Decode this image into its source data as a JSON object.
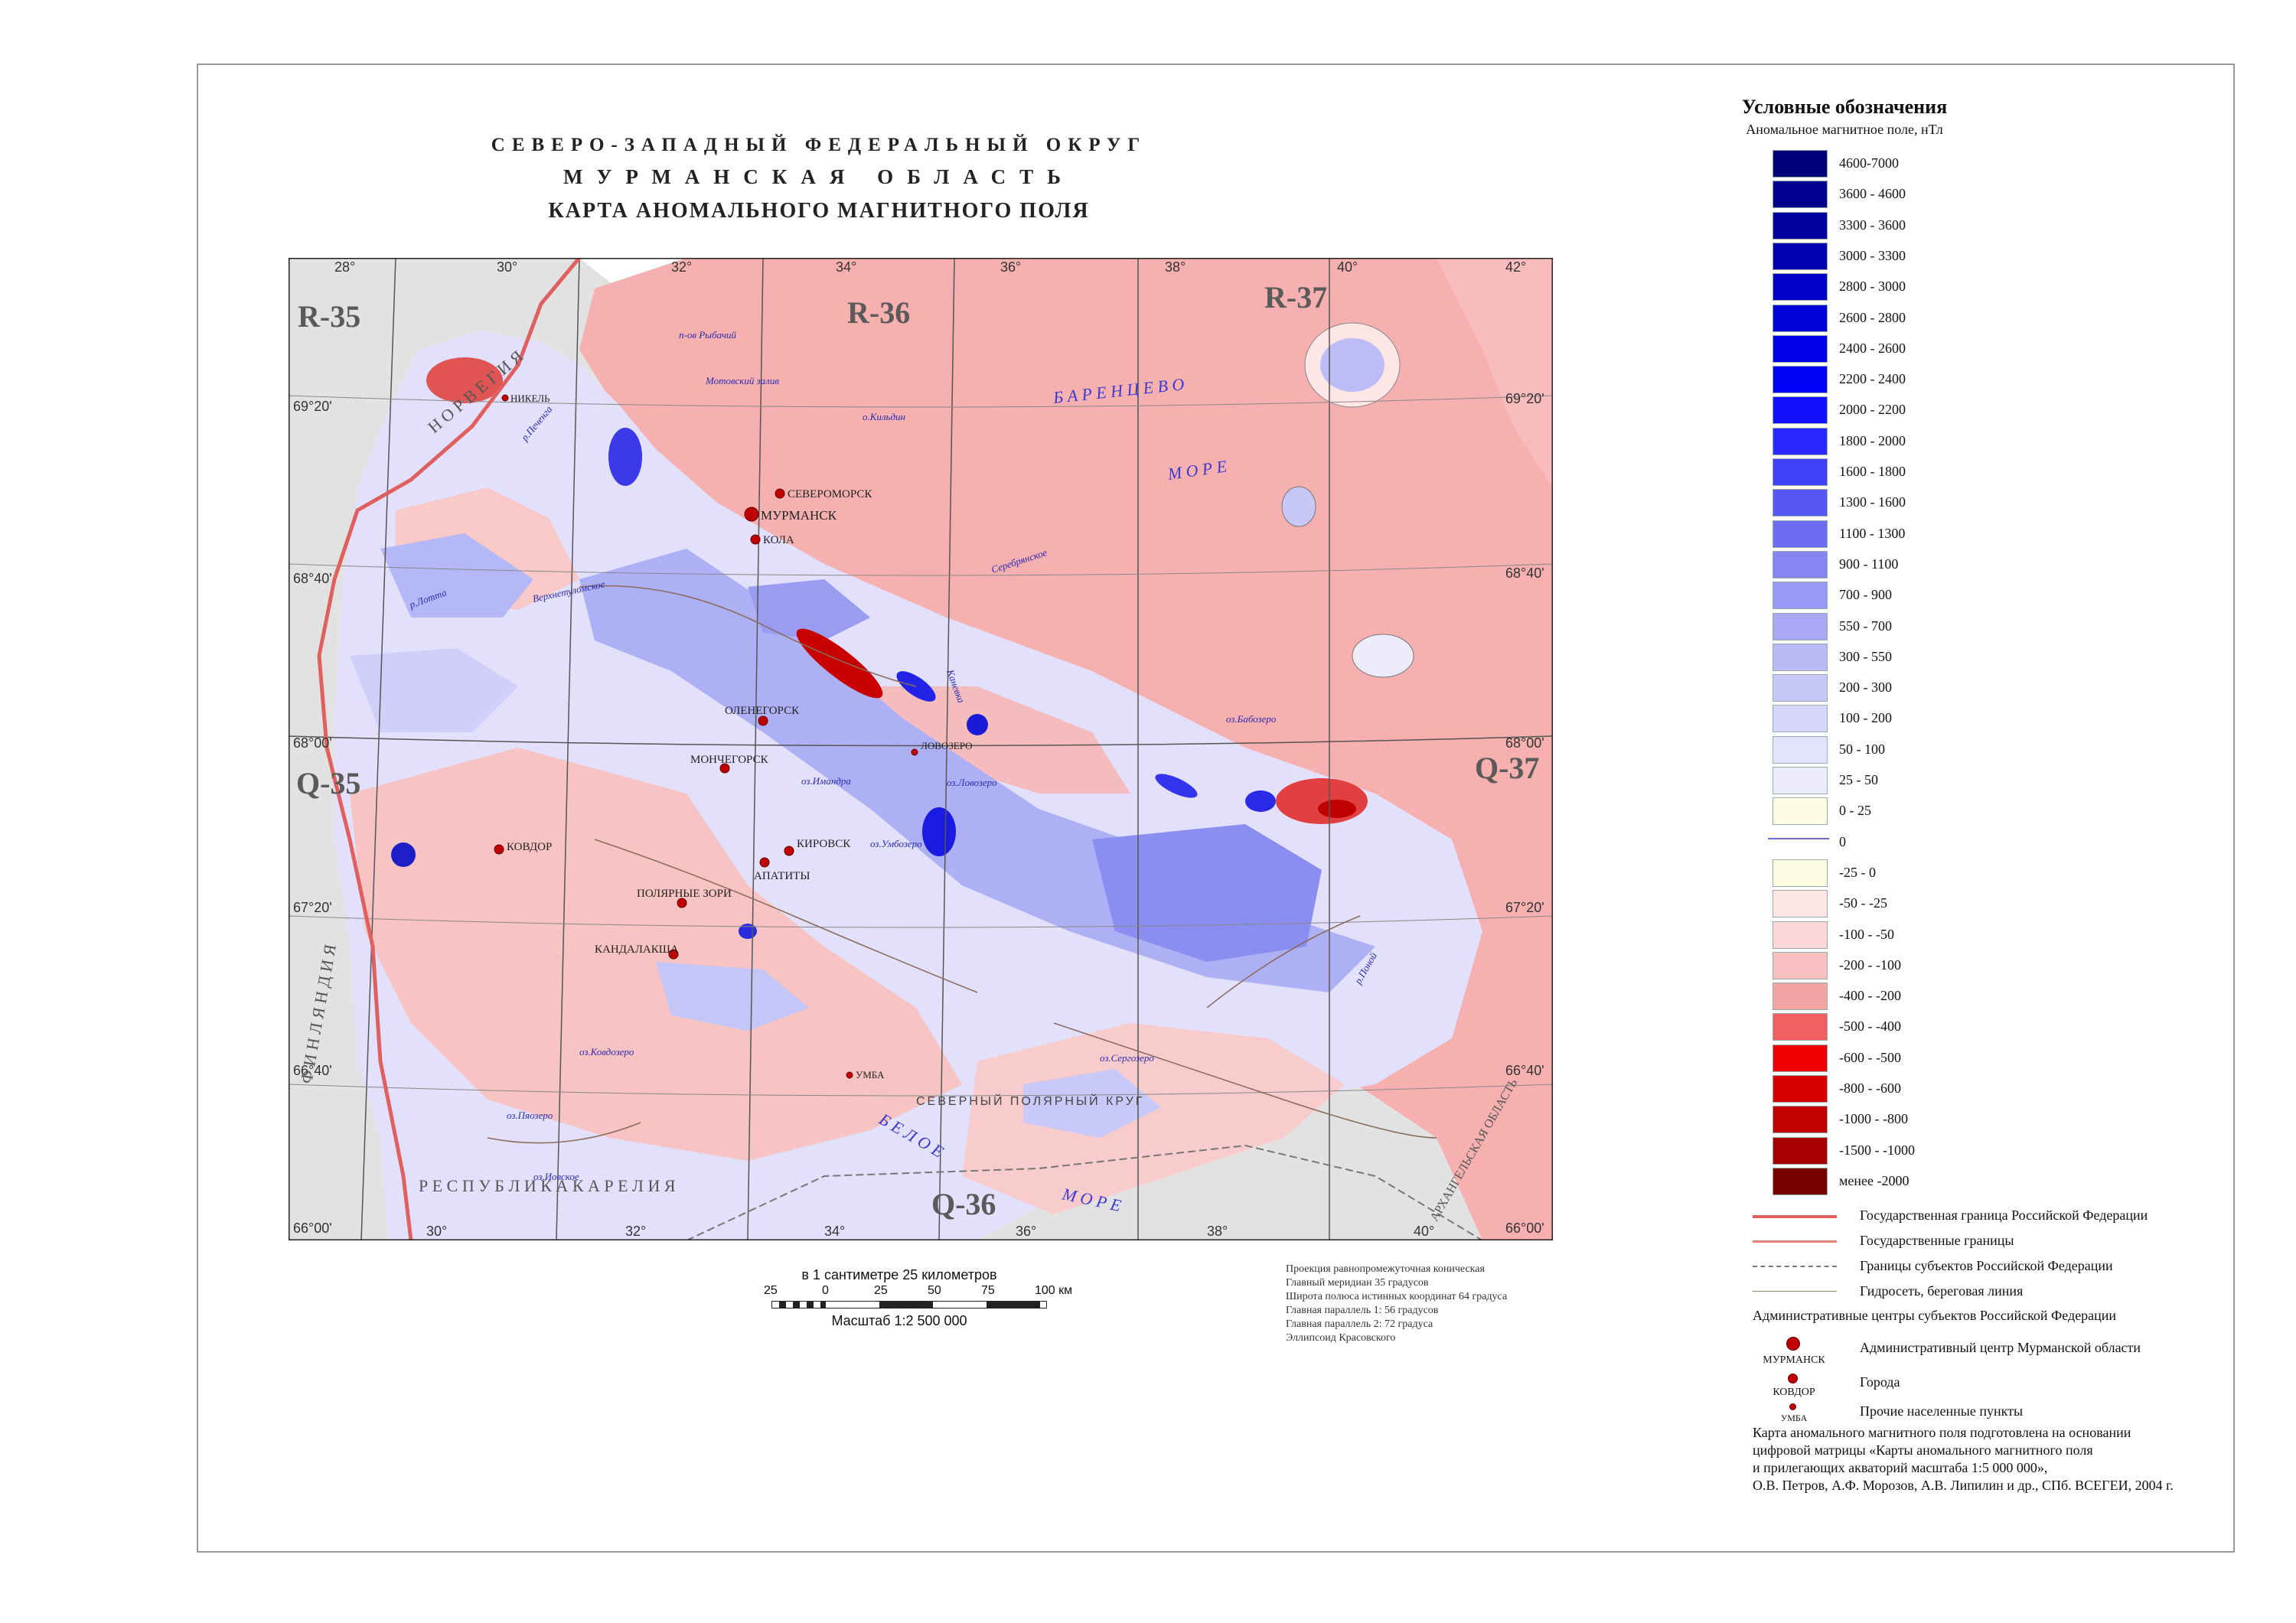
{
  "title": {
    "line1": "СЕВЕРО-ЗАПАДНЫЙ ФЕДЕРАЛЬНЫЙ ОКРУГ",
    "line2": "МУРМАНСКАЯ ОБЛАСТЬ",
    "line3": "КАРТА АНОМАЛЬНОГО МАГНИТНОГО ПОЛЯ"
  },
  "map": {
    "sheets": [
      "R-35",
      "R-36",
      "R-37",
      "Q-35",
      "Q-37",
      "Q-36"
    ],
    "longitudes_top": [
      "28°",
      "30°",
      "32°",
      "34°",
      "36°",
      "38°",
      "40°",
      "42°"
    ],
    "longitudes_bottom": [
      "30°",
      "32°",
      "34°",
      "36°",
      "38°",
      "40°"
    ],
    "latitudes_left": [
      "69°20'",
      "68°40'",
      "68°00'",
      "67°20'",
      "66°40'",
      "66°00'"
    ],
    "latitudes_right": [
      "69°20'",
      "68°40'",
      "68°00'",
      "67°20'",
      "66°40'",
      "66°00'"
    ],
    "regions": {
      "norway": "Н О Р В Е Г И Я",
      "finland": "Ф И Н Л Я Н Д И Я",
      "karelia": "Р Е С П У Б Л И К А   К А Р Е Л И Я",
      "arkhangelsk": "АРХАНГЕЛЬСКАЯ ОБЛАСТЬ",
      "barents_sea": "Б А Р Е Н Ц Е В О",
      "barents_sea2": "М О Р Е",
      "white_sea": "Б Е Л О Е",
      "white_sea2": "М О Р Е",
      "arctic_circle": "СЕВЕРНЫЙ   ПОЛЯРНЫЙ   КРУГ"
    },
    "cities": [
      {
        "name": "МУРМАНСК",
        "rank": "capital"
      },
      {
        "name": "СЕВЕРОМОРСК",
        "rank": "city"
      },
      {
        "name": "КОЛА",
        "rank": "city"
      },
      {
        "name": "ОЛЕНЕГОРСК",
        "rank": "city"
      },
      {
        "name": "МОНЧЕГОРСК",
        "rank": "city"
      },
      {
        "name": "КИРОВСК",
        "rank": "city"
      },
      {
        "name": "АПАТИТЫ",
        "rank": "city"
      },
      {
        "name": "ПОЛЯРНЫЕ ЗОРИ",
        "rank": "city"
      },
      {
        "name": "КАНДАЛАКША",
        "rank": "city"
      },
      {
        "name": "КОВДОР",
        "rank": "city"
      },
      {
        "name": "НИКЕЛЬ",
        "rank": "town"
      },
      {
        "name": "ЛОВОЗЕРО",
        "rank": "town"
      },
      {
        "name": "УМБА",
        "rank": "town"
      }
    ],
    "place_labels": [
      "п-ов Рыбачий",
      "Мотовский залив",
      "о.Кильдин",
      "оз.Имандра",
      "оз.Ловозеро",
      "оз.Умбозеро",
      "оз.Сергозеро",
      "оз.Ковдозеро",
      "оз.Пяозеро",
      "оз.Иовское",
      "оз.Пиозеро",
      "р.Поной",
      "р.Лотта",
      "р.Печенга",
      "Верхнетуломское",
      "Серебрянское",
      "Каневка",
      "оз.Бабозеро"
    ]
  },
  "scale": {
    "title": "в 1 сантиметре  25 километров",
    "ticks": [
      "25",
      "0",
      "25",
      "50",
      "75",
      "100 км"
    ],
    "label": "Масштаб 1:2 500 000"
  },
  "projection": [
    "Проекция  равнопромежуточная коническая",
    "Главный меридиан 35 градусов",
    "Широта полюса истинных координат 64 градуса",
    "Главная параллель 1:  56 градусов",
    "Главная параллель 2:  72 градуса",
    "Эллипсоид Красовского"
  ],
  "legend": {
    "title": "Условные обозначения",
    "subtitle": "Аномальное магнитное поле, нТл",
    "classes": [
      {
        "label": "4600-7000",
        "color": "#00007a"
      },
      {
        "label": "3600 - 4600",
        "color": "#00008c"
      },
      {
        "label": "3300 - 3600",
        "color": "#00009e"
      },
      {
        "label": "3000 - 3300",
        "color": "#0000b2"
      },
      {
        "label": "2800 - 3000",
        "color": "#0000c6"
      },
      {
        "label": "2600 - 2800",
        "color": "#0000d8"
      },
      {
        "label": "2400 - 2600",
        "color": "#0000e8"
      },
      {
        "label": "2200 - 2400",
        "color": "#0000f8"
      },
      {
        "label": "2000 - 2200",
        "color": "#1010ff"
      },
      {
        "label": "1800 - 2000",
        "color": "#2828ff"
      },
      {
        "label": "1600 - 1800",
        "color": "#4040fb"
      },
      {
        "label": "1300 - 1600",
        "color": "#5656f6"
      },
      {
        "label": "1100 - 1300",
        "color": "#6c6cf4"
      },
      {
        "label": "900 - 1100",
        "color": "#8585f4"
      },
      {
        "label": "700 - 900",
        "color": "#9898f5"
      },
      {
        "label": "550 - 700",
        "color": "#a8a8f6"
      },
      {
        "label": "300 - 550",
        "color": "#babaf7"
      },
      {
        "label": "200 - 300",
        "color": "#c8c8f8"
      },
      {
        "label": "100 - 200",
        "color": "#d6d6fa"
      },
      {
        "label": "50 - 100",
        "color": "#e2e2fb"
      },
      {
        "label": "25 - 50",
        "color": "#ebebfc"
      },
      {
        "label": "0 - 25",
        "color": "#fdfde2"
      },
      {
        "label": "0",
        "color": "#6a6ad0",
        "kind": "line"
      },
      {
        "label": "-25 - 0",
        "color": "#fdfde2"
      },
      {
        "label": "-50 - -25",
        "color": "#fde6e6"
      },
      {
        "label": "-100 - -50",
        "color": "#fbd6d6"
      },
      {
        "label": "-200 - -100",
        "color": "#f8c0c0"
      },
      {
        "label": "-400 - -200",
        "color": "#f4a3a3"
      },
      {
        "label": "-500 - -400",
        "color": "#f06060"
      },
      {
        "label": "-600 - -500",
        "color": "#f00000"
      },
      {
        "label": "-800 - -600",
        "color": "#d80000"
      },
      {
        "label": "-1000 - -800",
        "color": "#c40000"
      },
      {
        "label": "-1500 - -1000",
        "color": "#a80000"
      },
      {
        "label": "менее -2000",
        "color": "#7a0000"
      }
    ],
    "lines": [
      {
        "label": "Государственная граница Российской Федерации",
        "color": "#e06060"
      },
      {
        "label": "Государственные границы",
        "color": "#e88080"
      },
      {
        "label": "Границы субъектов Российской Федерации",
        "color": "#777777"
      },
      {
        "label": "Гидросеть, береговая линия",
        "color": "#8a8a6a"
      }
    ],
    "admin_heading": "Административные центры субъектов Российской Федерации",
    "points": [
      {
        "name": "МУРМАНСК",
        "label": "Административный центр Мурманской области"
      },
      {
        "name": "КОВДОР",
        "label": "Города"
      },
      {
        "name": "УМБА",
        "label": "Прочие населенные пункты"
      }
    ],
    "source": [
      "Карта аномального магнитного поля подготовлена на основании",
      "цифровой матрицы «Карты аномального магнитного поля",
      "и прилегающих акваторий масштаба 1:5 000 000»,",
      "О.В. Петров, А.Ф. Морозов, А.В. Липилин и др., СПб. ВСЕГЕИ, 2004 г."
    ]
  }
}
